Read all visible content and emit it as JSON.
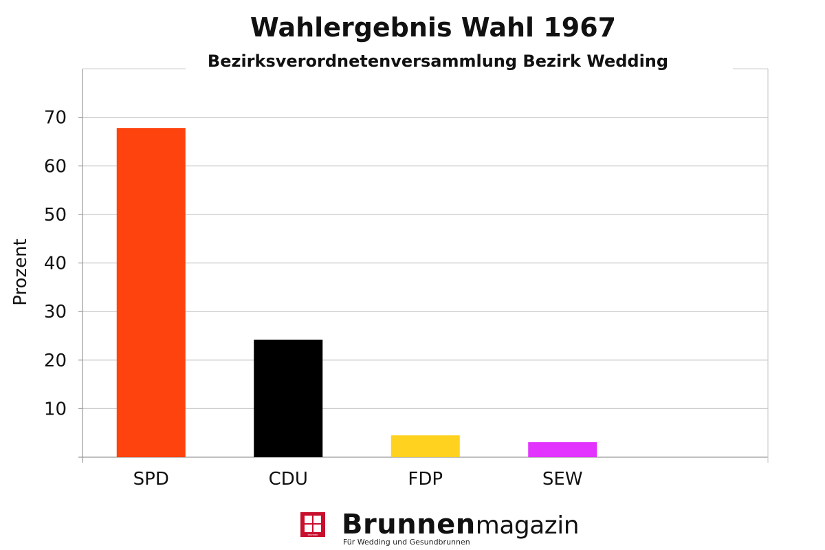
{
  "chart_data": {
    "type": "bar",
    "title": "Wahlergebnis Wahl 1967",
    "subtitle": "Bezirksverordnetenversammlung Bezirk Wedding",
    "ylabel": "Prozent",
    "xlabel": "",
    "categories": [
      "SPD",
      "CDU",
      "FDP",
      "SEW"
    ],
    "values": [
      67.8,
      24.2,
      4.5,
      3.1
    ],
    "colors": [
      "#ff430e",
      "#000000",
      "#ffd21f",
      "#e333ff"
    ],
    "ylim": [
      0,
      80
    ],
    "yticks": [
      10,
      20,
      30,
      40,
      50,
      60,
      70
    ],
    "grid": true,
    "legend": "none"
  },
  "branding": {
    "logo_icon": "brunnen-logo-icon",
    "logo_mark_text": "brunnen",
    "logo_bold": "Brunnen",
    "logo_light": "magazin",
    "tagline": "Für Wedding und Gesundbrunnen",
    "logo_color": "#c8102e"
  }
}
